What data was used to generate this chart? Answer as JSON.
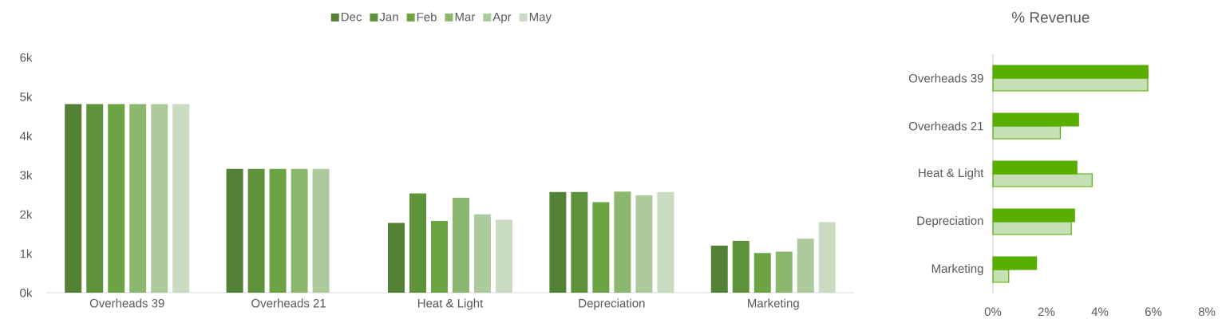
{
  "chart_data": [
    {
      "type": "bar",
      "categories": [
        "Overheads 39",
        "Overheads 21",
        "Heat & Light",
        "Depreciation",
        "Marketing"
      ],
      "series": [
        {
          "name": "Dec",
          "color": "#538135",
          "values": [
            4810,
            3160,
            1780,
            2570,
            1200
          ]
        },
        {
          "name": "Jan",
          "color": "#5f933b",
          "values": [
            4810,
            3160,
            2530,
            2570,
            1320
          ]
        },
        {
          "name": "Feb",
          "color": "#6ca444",
          "values": [
            4810,
            3160,
            1830,
            2310,
            1010
          ]
        },
        {
          "name": "Mar",
          "color": "#8bb86e",
          "values": [
            4810,
            3160,
            2420,
            2580,
            1050
          ]
        },
        {
          "name": "Apr",
          "color": "#adca9c",
          "values": [
            4810,
            3160,
            2000,
            2480,
            1380
          ]
        },
        {
          "name": "May",
          "color": "#c9dbc0",
          "values": [
            4810,
            null,
            1860,
            2570,
            1800
          ]
        }
      ],
      "ylim": [
        0,
        6000
      ],
      "yticks": [
        {
          "value": 0,
          "label": "0k"
        },
        {
          "value": 1000,
          "label": "1k"
        },
        {
          "value": 2000,
          "label": "2k"
        },
        {
          "value": 3000,
          "label": "3k"
        },
        {
          "value": 4000,
          "label": "4k"
        },
        {
          "value": 5000,
          "label": "5k"
        },
        {
          "value": 6000,
          "label": "6k"
        }
      ],
      "legend": "top",
      "grid": false
    },
    {
      "type": "bar",
      "orientation": "horizontal",
      "title": "% Revenue",
      "categories": [
        "Overheads 39",
        "Overheads 21",
        "Heat & Light",
        "Depreciation",
        "Marketing"
      ],
      "series": [
        {
          "color": "#5aae00",
          "values": [
            5.8,
            3.2,
            3.14,
            3.05,
            1.63
          ]
        },
        {
          "color": "#c5e0b4",
          "values": [
            5.79,
            2.52,
            3.71,
            2.93,
            0.59
          ]
        }
      ],
      "xlim": [
        0,
        8
      ],
      "xticks": [
        {
          "value": 0,
          "label": "0%"
        },
        {
          "value": 2,
          "label": "2%"
        },
        {
          "value": 4,
          "label": "4%"
        },
        {
          "value": 6,
          "label": "6%"
        },
        {
          "value": 8,
          "label": "8%"
        }
      ],
      "grid": false
    }
  ]
}
